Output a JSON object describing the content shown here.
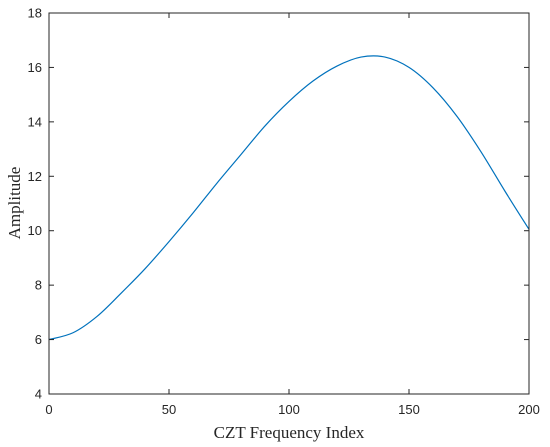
{
  "chart_data": {
    "type": "line",
    "title": "",
    "xlabel": "CZT Frequency Index",
    "ylabel": "Amplitude",
    "xlim": [
      0,
      200
    ],
    "ylim": [
      4,
      18
    ],
    "xticks": [
      0,
      50,
      100,
      150,
      200
    ],
    "yticks": [
      4,
      6,
      8,
      10,
      12,
      14,
      16,
      18
    ],
    "grid": false,
    "legend": "none",
    "series": [
      {
        "color": "#0072BD",
        "x": [
          0,
          10,
          20,
          30,
          40,
          50,
          60,
          70,
          80,
          90,
          100,
          110,
          120,
          130,
          140,
          150,
          160,
          170,
          180,
          190,
          200
        ],
        "y": [
          6.0,
          6.25,
          6.85,
          7.7,
          8.6,
          9.6,
          10.65,
          11.75,
          12.8,
          13.85,
          14.75,
          15.5,
          16.05,
          16.38,
          16.38,
          16.0,
          15.25,
          14.2,
          12.9,
          11.45,
          10.05
        ]
      }
    ]
  }
}
